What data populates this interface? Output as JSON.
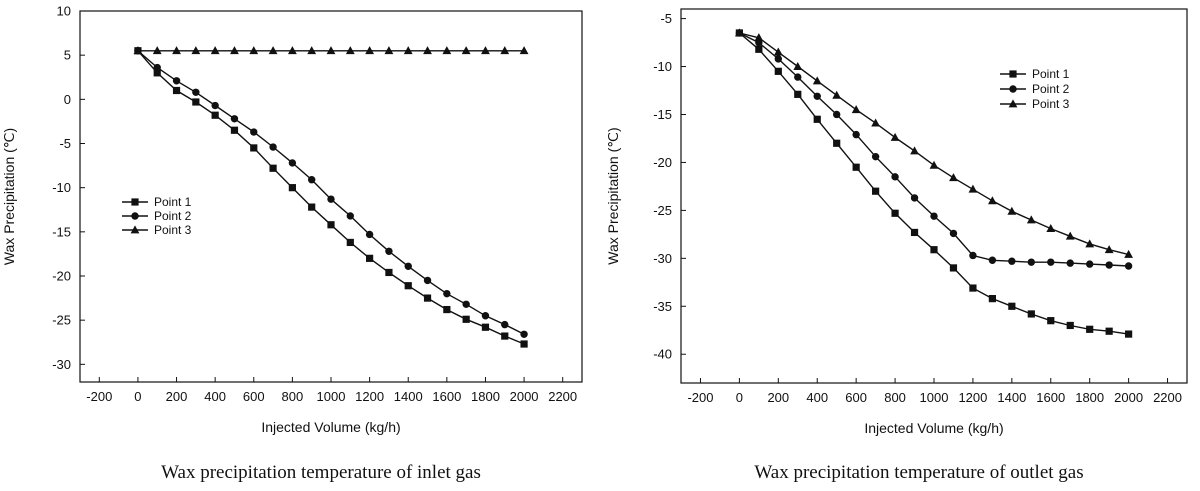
{
  "chart_data": [
    {
      "type": "line",
      "title": "",
      "caption": "Wax precipitation temperature of inlet gas",
      "xlabel": "Injected Volume (kg/h)",
      "ylabel": "Wax Precipitation (℃)",
      "xlim": [
        -300,
        2300
      ],
      "ylim": [
        -32,
        10
      ],
      "x_ticks": [
        -200,
        0,
        200,
        400,
        600,
        800,
        1000,
        1200,
        1400,
        1600,
        1800,
        2000,
        2200
      ],
      "y_ticks": [
        10,
        5,
        0,
        -5,
        -10,
        -15,
        -20,
        -25,
        -30
      ],
      "grid": false,
      "legend": "center-left",
      "x": [
        0,
        100,
        200,
        300,
        400,
        500,
        600,
        700,
        800,
        900,
        1000,
        1100,
        1200,
        1300,
        1400,
        1500,
        1600,
        1700,
        1800,
        1900,
        2000
      ],
      "series": [
        {
          "name": "Point 1",
          "marker": "square",
          "values": [
            5.5,
            3.0,
            1.0,
            -0.3,
            -1.8,
            -3.5,
            -5.5,
            -7.8,
            -10.0,
            -12.2,
            -14.2,
            -16.2,
            -18.0,
            -19.6,
            -21.1,
            -22.5,
            -23.8,
            -24.9,
            -25.8,
            -26.8,
            -27.7
          ]
        },
        {
          "name": "Point 2",
          "marker": "circle",
          "values": [
            5.5,
            3.6,
            2.1,
            0.8,
            -0.7,
            -2.2,
            -3.7,
            -5.4,
            -7.2,
            -9.1,
            -11.3,
            -13.2,
            -15.3,
            -17.2,
            -18.9,
            -20.5,
            -22.0,
            -23.2,
            -24.5,
            -25.5,
            -26.6
          ]
        },
        {
          "name": "Point 3",
          "marker": "triangle",
          "values": [
            5.5,
            5.5,
            5.5,
            5.5,
            5.5,
            5.5,
            5.5,
            5.5,
            5.5,
            5.5,
            5.5,
            5.5,
            5.5,
            5.5,
            5.5,
            5.5,
            5.5,
            5.5,
            5.5,
            5.5,
            5.5
          ]
        }
      ]
    },
    {
      "type": "line",
      "title": "",
      "caption": "Wax precipitation temperature of outlet gas",
      "xlabel": "Injected Volume (kg/h)",
      "ylabel": "Wax Precipitation (℃)",
      "xlim": [
        -300,
        2300
      ],
      "ylim": [
        -43,
        -4
      ],
      "x_ticks": [
        -200,
        0,
        200,
        400,
        600,
        800,
        1000,
        1200,
        1400,
        1600,
        1800,
        2000,
        2200
      ],
      "y_ticks": [
        -5,
        -10,
        -15,
        -20,
        -25,
        -30,
        -35,
        -40
      ],
      "grid": false,
      "legend": "top-right",
      "x": [
        0,
        100,
        200,
        300,
        400,
        500,
        600,
        700,
        800,
        900,
        1000,
        1100,
        1200,
        1300,
        1400,
        1500,
        1600,
        1700,
        1800,
        1900,
        2000
      ],
      "series": [
        {
          "name": "Point 1",
          "marker": "square",
          "values": [
            -6.5,
            -8.2,
            -10.5,
            -12.9,
            -15.5,
            -18.0,
            -20.5,
            -23.0,
            -25.3,
            -27.3,
            -29.1,
            -31.0,
            -33.1,
            -34.2,
            -35.0,
            -35.8,
            -36.5,
            -37.0,
            -37.4,
            -37.6,
            -37.9
          ]
        },
        {
          "name": "Point 2",
          "marker": "circle",
          "values": [
            -6.5,
            -7.5,
            -9.2,
            -11.1,
            -13.1,
            -15.0,
            -17.1,
            -19.4,
            -21.5,
            -23.7,
            -25.6,
            -27.4,
            -29.7,
            -30.2,
            -30.3,
            -30.4,
            -30.4,
            -30.5,
            -30.6,
            -30.7,
            -30.8
          ]
        },
        {
          "name": "Point 3",
          "marker": "triangle",
          "values": [
            -6.5,
            -7.0,
            -8.5,
            -10.0,
            -11.5,
            -13.0,
            -14.5,
            -15.9,
            -17.4,
            -18.8,
            -20.3,
            -21.6,
            -22.8,
            -24.0,
            -25.1,
            -26.0,
            -26.9,
            -27.7,
            -28.5,
            -29.1,
            -29.6
          ]
        }
      ]
    }
  ]
}
